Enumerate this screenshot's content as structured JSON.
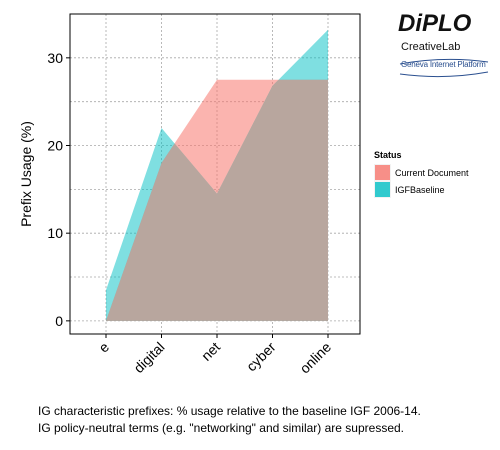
{
  "logo": {
    "name": "DiPLO",
    "line1": "CreativeLab",
    "line2": "Geneva Internet Platform"
  },
  "caption": [
    "IG characteristic prefixes: % usage relative to the baseline IGF 2006-14.",
    "IG policy-neutral terms (e.g. \"networking\" and similar) are supressed."
  ],
  "chart_data": {
    "type": "area",
    "categories": [
      "e",
      "digital",
      "net",
      "cyber",
      "online"
    ],
    "series": [
      {
        "name": "Current Document",
        "values": [
          0,
          18,
          27.5,
          27.5,
          27.5
        ]
      },
      {
        "name": "IGFBaseline",
        "values": [
          3.5,
          22,
          14.5,
          26.8,
          33.2
        ]
      }
    ],
    "ylabel": "Prefix Usage (%)",
    "xlabel": "",
    "ylim": [
      -1.5,
      35
    ],
    "yticks": [
      0,
      10,
      20,
      30
    ],
    "grid": true,
    "legend": {
      "title": "Status",
      "placement": "right"
    },
    "colors": {
      "Current Document": "#f8766d",
      "IGFBaseline": "#00bfc4",
      "overlap": "#b8a69e"
    }
  }
}
